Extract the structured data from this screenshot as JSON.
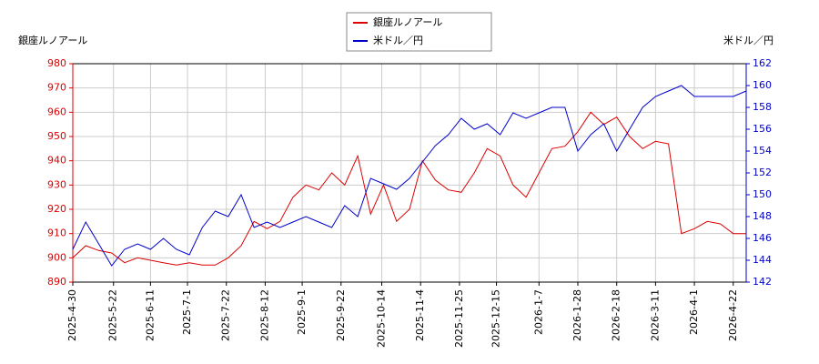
{
  "chart_data": {
    "type": "line",
    "ylabel": "銀座ルノアール",
    "y2label": "米ドル／円",
    "x": [
      "2025-4-30",
      "2025-5-7",
      "2025-5-14",
      "2025-5-21",
      "2025-5-28",
      "2025-6-4",
      "2025-6-11",
      "2025-6-18",
      "2025-6-25",
      "2025-7-2",
      "2025-7-9",
      "2025-7-16",
      "2025-7-23",
      "2025-7-30",
      "2025-8-6",
      "2025-8-13",
      "2025-8-20",
      "2025-8-27",
      "2025-9-3",
      "2025-9-10",
      "2025-9-17",
      "2025-9-24",
      "2025-10-1",
      "2025-10-8",
      "2025-10-15",
      "2025-10-22",
      "2025-10-29",
      "2025-11-5",
      "2025-11-12",
      "2025-11-19",
      "2025-11-26",
      "2025-12-3",
      "2025-12-10",
      "2025-12-17",
      "2025-12-24",
      "2025-12-31",
      "2026-1-7",
      "2026-1-14",
      "2026-1-21",
      "2026-1-28",
      "2026-2-4",
      "2026-2-11",
      "2026-2-18",
      "2026-2-25",
      "2026-3-4",
      "2026-3-11",
      "2026-3-18",
      "2026-3-25",
      "2026-4-1",
      "2026-4-8",
      "2026-4-15",
      "2026-4-22",
      "2026-4-29"
    ],
    "series": [
      {
        "name": "銀座ルノアール",
        "color": "#dd0000",
        "axis": "y",
        "values": [
          900,
          905,
          903,
          902,
          898,
          900,
          899,
          898,
          897,
          898,
          897,
          897,
          900,
          905,
          915,
          912,
          915,
          925,
          930,
          928,
          935,
          930,
          942,
          918,
          930,
          915,
          920,
          940,
          932,
          928,
          927,
          935,
          945,
          942,
          930,
          925,
          935,
          945,
          946,
          952,
          960,
          955,
          958,
          950,
          945,
          948,
          947,
          910,
          912,
          915,
          914,
          910,
          910
        ]
      },
      {
        "name": "米ドル／円",
        "color": "#0000cc",
        "axis": "y2",
        "values": [
          145,
          147.5,
          145.5,
          143.5,
          145,
          145.5,
          145,
          146,
          145,
          144.5,
          147,
          148.5,
          148,
          150,
          147,
          147.5,
          147,
          147.5,
          148,
          147.5,
          147,
          149,
          148,
          151.5,
          151,
          150.5,
          151.5,
          153,
          154.5,
          155.5,
          157,
          156,
          156.5,
          155.5,
          157.5,
          157,
          157.5,
          158,
          158,
          154,
          155.5,
          156.5,
          154,
          156,
          158,
          159,
          159.5,
          160,
          159,
          159,
          159,
          159,
          159.5
        ]
      }
    ],
    "xlim": [
      "2025-4-30",
      "2026-4-29"
    ],
    "xticks": [
      "2025-4-30",
      "2025-5-22",
      "2025-6-11",
      "2025-7-1",
      "2025-7-22",
      "2025-8-12",
      "2025-9-1",
      "2025-9-22",
      "2025-10-14",
      "2025-11-4",
      "2025-11-25",
      "2025-12-15",
      "2026-1-7",
      "2026-1-28",
      "2026-2-18",
      "2026-3-11",
      "2026-4-1",
      "2026-4-22"
    ],
    "ylim": [
      890,
      980
    ],
    "yticks": [
      890,
      900,
      910,
      920,
      930,
      940,
      950,
      960,
      970,
      980
    ],
    "y2lim": [
      142,
      162
    ],
    "y2ticks": [
      142,
      144,
      146,
      148,
      150,
      152,
      154,
      156,
      158,
      160,
      162
    ],
    "grid": true
  }
}
